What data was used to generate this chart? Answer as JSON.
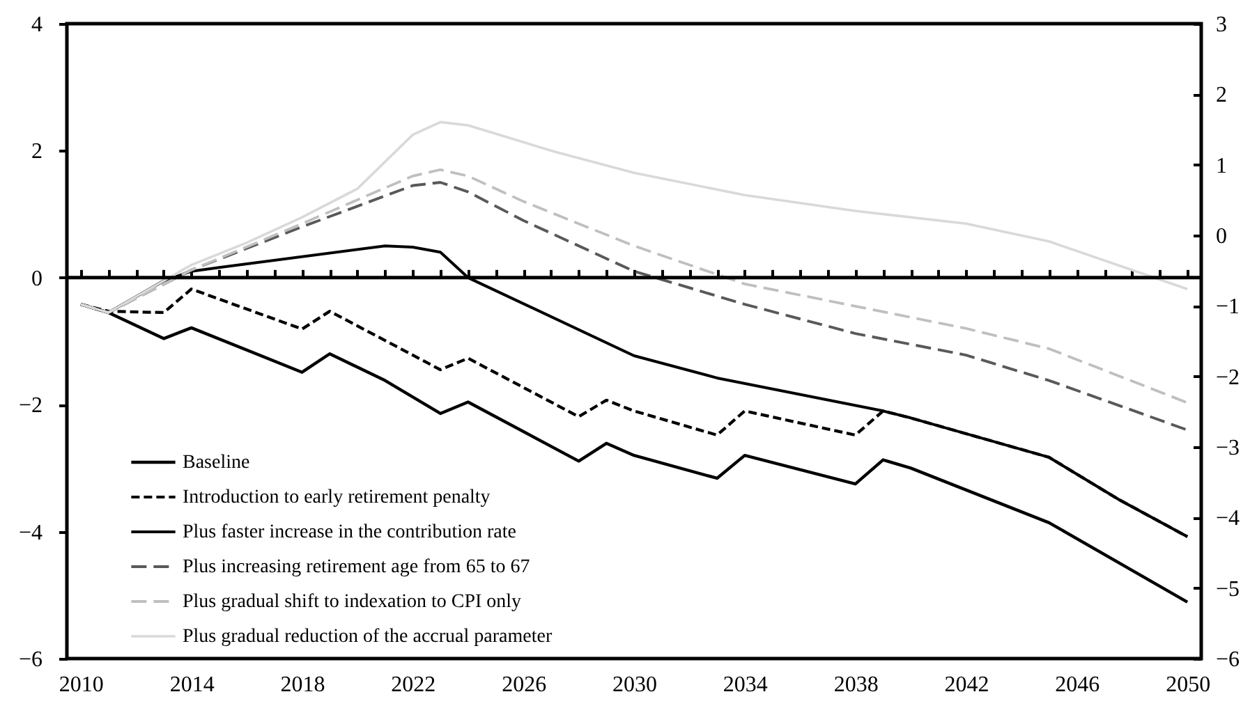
{
  "chart_data": {
    "type": "line",
    "xlim": [
      2009.5,
      2050.5
    ],
    "xticks": [
      2010,
      2014,
      2018,
      2022,
      2026,
      2030,
      2034,
      2038,
      2042,
      2046,
      2050
    ],
    "ylim": [
      -6,
      4
    ],
    "yticks": [
      -6,
      -4,
      -2,
      0,
      2,
      4
    ],
    "y2lim": [
      -6,
      3
    ],
    "y2ticks": [
      -6,
      -5,
      -4,
      -3,
      -2,
      -1,
      0,
      1,
      2,
      3
    ],
    "legend": "bottom left",
    "grid": false,
    "ref_lines": [
      {
        "axis": "y",
        "value": 0,
        "color": "#000000"
      }
    ],
    "series": [
      {
        "name": "Baseline",
        "color": "#000000",
        "line_style": "solid",
        "x": [
          2010,
          2011,
          2013,
          2014,
          2018,
          2019,
          2021,
          2023,
          2024,
          2028,
          2029,
          2030,
          2033,
          2034,
          2038,
          2039,
          2040,
          2045,
          2050
        ],
        "values": [
          -0.42,
          -0.55,
          -0.96,
          -0.79,
          -1.49,
          -1.2,
          -1.62,
          -2.14,
          -1.96,
          -2.89,
          -2.61,
          -2.8,
          -3.16,
          -2.8,
          -3.25,
          -2.87,
          -3.0,
          -3.86,
          -5.11
        ]
      },
      {
        "name": "Introduction to early retirement penalty",
        "color": "#000000",
        "line_style": "dashed",
        "x": [
          2010,
          2011,
          2013,
          2014,
          2018,
          2019,
          2023,
          2024,
          2028,
          2029,
          2030,
          2033,
          2034,
          2038,
          2039,
          2040,
          2045,
          2047.5,
          2050
        ],
        "values": [
          -0.42,
          -0.53,
          -0.55,
          -0.18,
          -0.81,
          -0.53,
          -1.45,
          -1.27,
          -2.19,
          -1.93,
          -2.1,
          -2.48,
          -2.1,
          -2.48,
          -2.1,
          -2.21,
          -2.83,
          -3.49,
          -4.08
        ]
      },
      {
        "name": "Plus faster increase in the contribution rate",
        "color": "#000000",
        "line_style": "solid",
        "x": [
          2010,
          2011,
          2012,
          2013,
          2014,
          2015,
          2021,
          2022,
          2023,
          2024,
          2030,
          2033,
          2039,
          2040,
          2045,
          2047.5,
          2050
        ],
        "values": [
          -0.42,
          -0.55,
          -0.3,
          -0.05,
          0.1,
          0.16,
          0.5,
          0.48,
          0.4,
          0.0,
          -1.23,
          -1.58,
          -2.1,
          -2.21,
          -2.83,
          -3.49,
          -4.08
        ]
      },
      {
        "name": "Plus increasing retirement age from 65 to 67",
        "color": "#595959",
        "line_style": "dashed",
        "x": [
          2010,
          2011,
          2014,
          2018,
          2022,
          2023,
          2024,
          2026,
          2030,
          2034,
          2038,
          2042,
          2045,
          2050
        ],
        "values": [
          -0.42,
          -0.55,
          0.12,
          0.8,
          1.45,
          1.5,
          1.35,
          0.9,
          0.1,
          -0.42,
          -0.88,
          -1.22,
          -1.62,
          -2.4
        ]
      },
      {
        "name": "Plus gradual shift to indexation to CPI only",
        "color": "#bfbfbf",
        "line_style": "dashed",
        "x": [
          2010,
          2011,
          2014,
          2018,
          2022,
          2023,
          2024,
          2026,
          2030,
          2034,
          2038,
          2042,
          2045,
          2050
        ],
        "values": [
          -0.42,
          -0.55,
          0.12,
          0.85,
          1.6,
          1.7,
          1.6,
          1.2,
          0.5,
          -0.1,
          -0.45,
          -0.8,
          -1.12,
          -1.97
        ]
      },
      {
        "name": "Plus gradual reduction of the accrual parameter",
        "color": "#d9d9d9",
        "line_style": "solid",
        "x": [
          2010,
          2011,
          2014,
          2016,
          2018,
          2020,
          2022,
          2023,
          2024,
          2027,
          2030,
          2034,
          2038,
          2042,
          2045,
          2050
        ],
        "values": [
          -0.42,
          -0.55,
          0.2,
          0.55,
          0.95,
          1.4,
          2.25,
          2.45,
          2.4,
          2.0,
          1.65,
          1.3,
          1.05,
          0.85,
          0.57,
          -0.18
        ]
      }
    ]
  }
}
